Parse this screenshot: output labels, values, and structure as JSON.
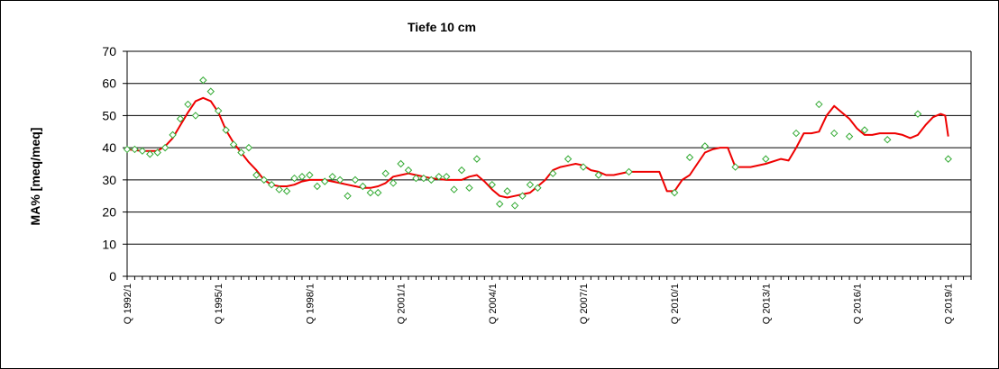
{
  "chart_data": {
    "type": "line",
    "title": "Tiefe  10 cm",
    "xlabel": "",
    "ylabel": "MA% [meq/meq]",
    "ylim": [
      0,
      70
    ],
    "yticks": [
      0,
      10,
      20,
      30,
      40,
      50,
      60,
      70
    ],
    "xlim": [
      1992.0,
      2019.75
    ],
    "xtick_labels": [
      {
        "x": 1992.0,
        "label": "Q 1992/1"
      },
      {
        "x": 1995.0,
        "label": "Q 1995/1"
      },
      {
        "x": 1998.0,
        "label": "Q 1998/1"
      },
      {
        "x": 2001.0,
        "label": "Q 2001/1"
      },
      {
        "x": 2004.0,
        "label": "Q 2004/1"
      },
      {
        "x": 2007.0,
        "label": "Q 2007/1"
      },
      {
        "x": 2010.0,
        "label": "Q 2010/1"
      },
      {
        "x": 2013.0,
        "label": "Q 2013/1"
      },
      {
        "x": 2016.0,
        "label": "Q 2016/1"
      },
      {
        "x": 2019.0,
        "label": "Q 2019/1"
      }
    ],
    "grid": "horizontal",
    "legend": "none",
    "series": [
      {
        "kind": "scatter",
        "marker": "diamond",
        "color": "#33aa33",
        "points": [
          [
            1992.0,
            39.5
          ],
          [
            1992.25,
            39.5
          ],
          [
            1992.5,
            39
          ],
          [
            1992.75,
            38
          ],
          [
            1993.0,
            38.5
          ],
          [
            1993.25,
            40
          ],
          [
            1993.5,
            44
          ],
          [
            1993.75,
            49
          ],
          [
            1994.0,
            53.5
          ],
          [
            1994.25,
            50
          ],
          [
            1994.5,
            61
          ],
          [
            1994.75,
            57.5
          ],
          [
            1995.0,
            51.5
          ],
          [
            1995.25,
            45.5
          ],
          [
            1995.5,
            41
          ],
          [
            1995.75,
            38.5
          ],
          [
            1996.0,
            40
          ],
          [
            1996.25,
            31.5
          ],
          [
            1996.5,
            30
          ],
          [
            1996.75,
            28.5
          ],
          [
            1997.0,
            27
          ],
          [
            1997.25,
            26.5
          ],
          [
            1997.5,
            30.5
          ],
          [
            1997.75,
            31
          ],
          [
            1998.0,
            31.5
          ],
          [
            1998.25,
            28
          ],
          [
            1998.5,
            29.5
          ],
          [
            1998.75,
            31
          ],
          [
            1999.0,
            30
          ],
          [
            1999.25,
            25
          ],
          [
            1999.5,
            30
          ],
          [
            1999.75,
            28
          ],
          [
            2000.0,
            26
          ],
          [
            2000.25,
            26
          ],
          [
            2000.5,
            32
          ],
          [
            2000.75,
            29
          ],
          [
            2001.0,
            35
          ],
          [
            2001.25,
            33
          ],
          [
            2001.5,
            30.5
          ],
          [
            2001.75,
            30.5
          ],
          [
            2002.0,
            30
          ],
          [
            2002.25,
            31
          ],
          [
            2002.5,
            31
          ],
          [
            2002.75,
            27
          ],
          [
            2003.0,
            33
          ],
          [
            2003.25,
            27.5
          ],
          [
            2003.5,
            36.5
          ],
          [
            2004.0,
            28.5
          ],
          [
            2004.25,
            22.5
          ],
          [
            2004.5,
            26.5
          ],
          [
            2004.75,
            22
          ],
          [
            2005.0,
            25
          ],
          [
            2005.25,
            28.5
          ],
          [
            2005.5,
            27.5
          ],
          [
            2006.0,
            32
          ],
          [
            2006.5,
            36.5
          ],
          [
            2007.0,
            34
          ],
          [
            2007.5,
            31.5
          ],
          [
            2008.5,
            32.5
          ],
          [
            2010.0,
            26
          ],
          [
            2010.5,
            37
          ],
          [
            2011.0,
            40.5
          ],
          [
            2012.0,
            34
          ],
          [
            2013.0,
            36.5
          ],
          [
            2014.0,
            44.5
          ],
          [
            2014.75,
            53.5
          ],
          [
            2015.25,
            44.5
          ],
          [
            2015.75,
            43.5
          ],
          [
            2016.25,
            45.5
          ],
          [
            2017.0,
            42.5
          ],
          [
            2018.0,
            50.5
          ],
          [
            2019.0,
            36.5
          ]
        ]
      },
      {
        "kind": "line",
        "color": "#ee0000",
        "points": [
          [
            1992.0,
            39.5
          ],
          [
            1992.5,
            39
          ],
          [
            1993.0,
            39
          ],
          [
            1993.25,
            40.5
          ],
          [
            1993.5,
            43
          ],
          [
            1993.75,
            47
          ],
          [
            1994.0,
            51
          ],
          [
            1994.25,
            54.5
          ],
          [
            1994.5,
            55.5
          ],
          [
            1994.75,
            54.5
          ],
          [
            1995.0,
            51
          ],
          [
            1995.25,
            45.5
          ],
          [
            1995.5,
            41.5
          ],
          [
            1995.75,
            38.5
          ],
          [
            1996.0,
            35.5
          ],
          [
            1996.25,
            33
          ],
          [
            1996.5,
            30
          ],
          [
            1996.75,
            28.5
          ],
          [
            1997.0,
            28
          ],
          [
            1997.25,
            28
          ],
          [
            1997.5,
            28.5
          ],
          [
            1997.75,
            29.5
          ],
          [
            1998.0,
            30
          ],
          [
            1998.5,
            30
          ],
          [
            1999.0,
            29
          ],
          [
            1999.5,
            28
          ],
          [
            1999.75,
            27.5
          ],
          [
            2000.0,
            27.5
          ],
          [
            2000.25,
            28
          ],
          [
            2000.5,
            29
          ],
          [
            2000.75,
            31
          ],
          [
            2001.0,
            31.5
          ],
          [
            2001.25,
            32
          ],
          [
            2001.5,
            31.5
          ],
          [
            2001.75,
            31
          ],
          [
            2002.0,
            30.5
          ],
          [
            2002.5,
            30
          ],
          [
            2003.0,
            30
          ],
          [
            2003.25,
            31
          ],
          [
            2003.5,
            31.5
          ],
          [
            2003.75,
            29.5
          ],
          [
            2004.0,
            27
          ],
          [
            2004.25,
            25
          ],
          [
            2004.5,
            24.5
          ],
          [
            2004.75,
            25
          ],
          [
            2005.0,
            25.5
          ],
          [
            2005.25,
            26
          ],
          [
            2005.5,
            28
          ],
          [
            2005.75,
            30
          ],
          [
            2006.0,
            33
          ],
          [
            2006.25,
            34
          ],
          [
            2006.5,
            34.5
          ],
          [
            2006.75,
            35
          ],
          [
            2007.0,
            34.5
          ],
          [
            2007.25,
            33
          ],
          [
            2007.5,
            32.5
          ],
          [
            2007.75,
            31.5
          ],
          [
            2008.0,
            31.5
          ],
          [
            2008.5,
            32.5
          ],
          [
            2009.0,
            32.5
          ],
          [
            2009.5,
            32.5
          ],
          [
            2009.75,
            26.5
          ],
          [
            2010.0,
            26.5
          ],
          [
            2010.25,
            30
          ],
          [
            2010.5,
            31.5
          ],
          [
            2010.75,
            35
          ],
          [
            2011.0,
            38.5
          ],
          [
            2011.25,
            39.5
          ],
          [
            2011.5,
            40
          ],
          [
            2011.75,
            40
          ],
          [
            2012.0,
            34
          ],
          [
            2012.5,
            34
          ],
          [
            2013.0,
            35
          ],
          [
            2013.5,
            36.5
          ],
          [
            2013.75,
            36
          ],
          [
            2014.0,
            40
          ],
          [
            2014.25,
            44.5
          ],
          [
            2014.5,
            44.5
          ],
          [
            2014.75,
            45
          ],
          [
            2015.0,
            50
          ],
          [
            2015.25,
            53
          ],
          [
            2015.5,
            51
          ],
          [
            2015.75,
            49
          ],
          [
            2016.0,
            46
          ],
          [
            2016.25,
            44
          ],
          [
            2016.5,
            44
          ],
          [
            2016.75,
            44.5
          ],
          [
            2017.0,
            44.5
          ],
          [
            2017.25,
            44.5
          ],
          [
            2017.5,
            44
          ],
          [
            2017.75,
            43
          ],
          [
            2018.0,
            44
          ],
          [
            2018.25,
            47
          ],
          [
            2018.5,
            49.5
          ],
          [
            2018.75,
            50.5
          ],
          [
            2018.9,
            50
          ],
          [
            2019.0,
            43.5
          ]
        ]
      }
    ]
  }
}
